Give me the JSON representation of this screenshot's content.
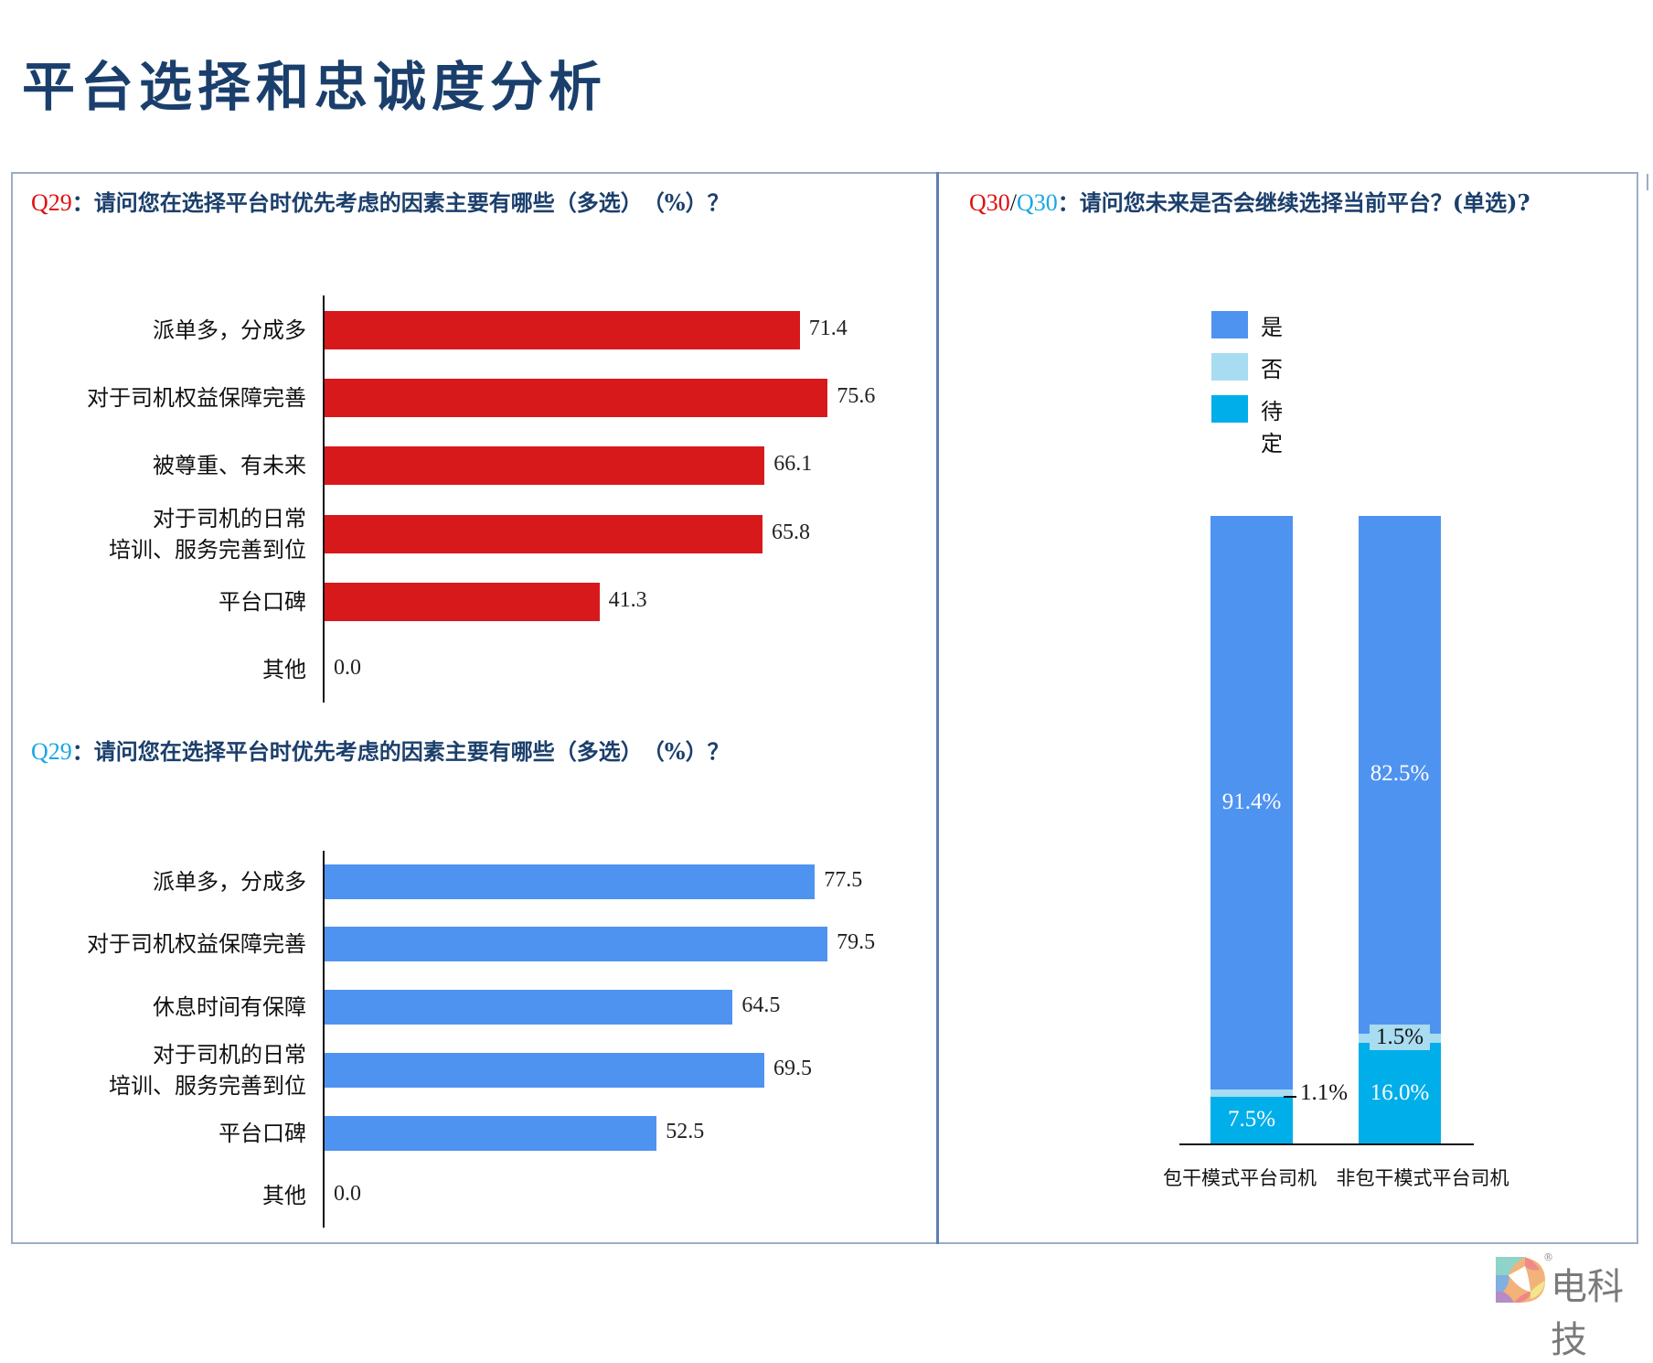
{
  "page": {
    "title": "平台选择和忠诚度分析"
  },
  "panel_left": {
    "chart1": {
      "q_prefix": "Q29",
      "q_text": "：请问您在选择平台时优先考虑的因素主要有哪些（多选）　（%）？",
      "color": "#d7191c"
    },
    "chart2": {
      "q_prefix": "Q29",
      "q_text": "：请问您在选择平台时优先考虑的因素主要有哪些（多选）　（%）？",
      "color": "#4f93f1"
    }
  },
  "panel_right": {
    "q_prefix_red": "Q30",
    "q_slash": "/",
    "q_prefix_blue": "Q30",
    "q_text": "：请问您未来是否会继续选择当前平台？(单选)?",
    "legend": [
      {
        "label": "是",
        "color": "#4f93f1"
      },
      {
        "label": "否",
        "color": "#a8dcf0"
      },
      {
        "label": "待定",
        "color": "#00aeea"
      }
    ],
    "x_labels": [
      "包干模式平台司机",
      "非包干模式平台司机"
    ]
  },
  "chart_data": [
    {
      "type": "bar",
      "orientation": "horizontal",
      "title": "Q29：请问您在选择平台时优先考虑的因素主要有哪些（多选）（%）？",
      "categories": [
        "派单多，分成多",
        "对于司机权益保障完善",
        "被尊重、有未来",
        "对于司机的日常培训、服务完善到位",
        "平台口碑",
        "其他"
      ],
      "category_lines": [
        [
          "派单多，分成多"
        ],
        [
          "对于司机权益保障完善"
        ],
        [
          "被尊重、有未来"
        ],
        [
          "对于司机的日常",
          "培训、服务完善到位"
        ],
        [
          "平台口碑"
        ],
        [
          "其他"
        ]
      ],
      "values": [
        71.4,
        75.6,
        66.1,
        65.8,
        41.3,
        0.0
      ],
      "value_labels": [
        "71.4",
        "75.6",
        "66.1",
        "65.8",
        "41.3",
        "0.0"
      ],
      "color": "#d7191c",
      "xlabel": "",
      "ylabel": "",
      "grid": false,
      "unit": "%"
    },
    {
      "type": "bar",
      "orientation": "horizontal",
      "title": "Q29：请问您在选择平台时优先考虑的因素主要有哪些（多选）（%）？",
      "categories": [
        "派单多，分成多",
        "对于司机权益保障完善",
        "休息时间有保障",
        "对于司机的日常培训、服务完善到位",
        "平台口碑",
        "其他"
      ],
      "category_lines": [
        [
          "派单多，分成多"
        ],
        [
          "对于司机权益保障完善"
        ],
        [
          "休息时间有保障"
        ],
        [
          "对于司机的日常",
          "培训、服务完善到位"
        ],
        [
          "平台口碑"
        ],
        [
          "其他"
        ]
      ],
      "values": [
        77.5,
        79.5,
        64.5,
        69.5,
        52.5,
        0.0
      ],
      "value_labels": [
        "77.5",
        "79.5",
        "64.5",
        "69.5",
        "52.5",
        "0.0"
      ],
      "color": "#4f93f1",
      "xlabel": "",
      "ylabel": "",
      "grid": false,
      "unit": "%"
    },
    {
      "type": "bar",
      "stacked": true,
      "title": "Q30/Q30：请问您未来是否会继续选择当前平台？(单选)?",
      "categories": [
        "包干模式平台司机",
        "非包干模式平台司机"
      ],
      "series": [
        {
          "name": "待定",
          "values": [
            7.5,
            16.0
          ],
          "labels": [
            "7.5%",
            "16.0%"
          ],
          "color": "#00aeea"
        },
        {
          "name": "否",
          "values": [
            1.1,
            1.5
          ],
          "labels": [
            "1.1%",
            "1.5%"
          ],
          "color": "#a8dcf0"
        },
        {
          "name": "是",
          "values": [
            91.4,
            82.5
          ],
          "labels": [
            "91.4%",
            "82.5%"
          ],
          "color": "#4f93f1"
        }
      ],
      "legend": [
        "是",
        "否",
        "待定"
      ],
      "legend_position": "top-left",
      "ylim": [
        0,
        100
      ],
      "grid": false,
      "unit": "%"
    }
  ],
  "logo": {
    "text": "电科技",
    "mark": "®"
  }
}
